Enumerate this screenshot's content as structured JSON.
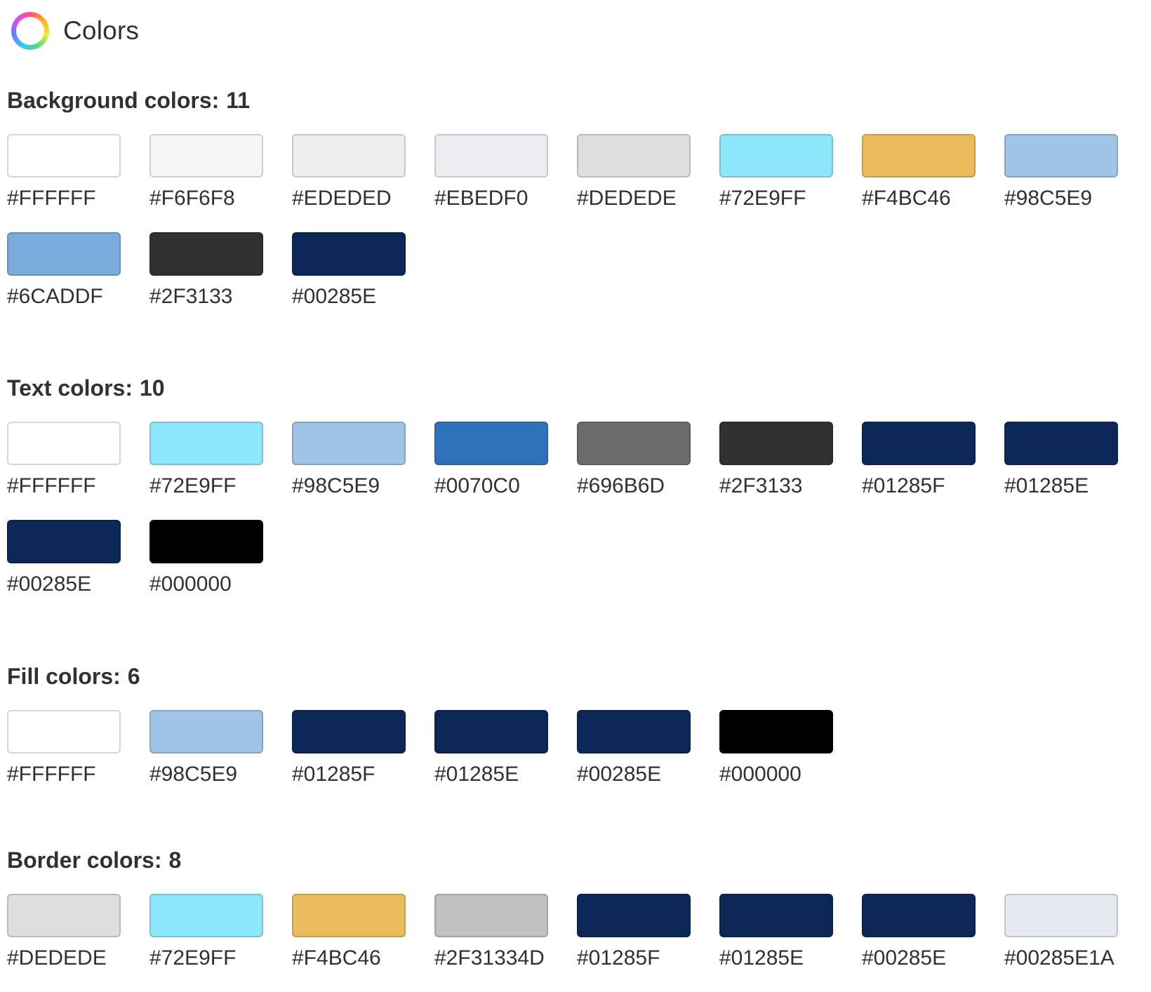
{
  "header": {
    "title": "Colors",
    "icon": "color-ring-icon"
  },
  "sections": [
    {
      "key": "background",
      "label": "Background colors:",
      "count": "11",
      "colors": [
        {
          "hex": "#FFFFFF",
          "swatch": "#FFFFFF"
        },
        {
          "hex": "#F6F6F8",
          "swatch": "#F6F6F8"
        },
        {
          "hex": "#EDEDED",
          "swatch": "#EDEDED"
        },
        {
          "hex": "#EBEDF0",
          "swatch": "#EBEDF0"
        },
        {
          "hex": "#DEDEDE",
          "swatch": "#DEDEDE"
        },
        {
          "hex": "#72E9FF",
          "swatch": "#8EE6FA"
        },
        {
          "hex": "#F4BC46",
          "swatch": "#EBBC5E"
        },
        {
          "hex": "#98C5E9",
          "swatch": "#A0C4E6"
        },
        {
          "hex": "#6CADDF",
          "swatch": "#7BADDC"
        },
        {
          "hex": "#2F3133",
          "swatch": "#2F3133"
        },
        {
          "hex": "#00285E",
          "swatch": "#0C2858"
        }
      ]
    },
    {
      "key": "text",
      "label": "Text colors:",
      "count": "10",
      "colors": [
        {
          "hex": "#FFFFFF",
          "swatch": "#FFFFFF"
        },
        {
          "hex": "#72E9FF",
          "swatch": "#8EE6FA"
        },
        {
          "hex": "#98C5E9",
          "swatch": "#A0C4E6"
        },
        {
          "hex": "#0070C0",
          "swatch": "#2E72BA"
        },
        {
          "hex": "#696B6D",
          "swatch": "#6B6C6E"
        },
        {
          "hex": "#2F3133",
          "swatch": "#2F3133"
        },
        {
          "hex": "#01285F",
          "swatch": "#0C2858"
        },
        {
          "hex": "#01285E",
          "swatch": "#0C2858"
        },
        {
          "hex": "#00285E",
          "swatch": "#0C2858"
        },
        {
          "hex": "#000000",
          "swatch": "#000000"
        }
      ]
    },
    {
      "key": "fill",
      "label": "Fill colors:",
      "count": "6",
      "colors": [
        {
          "hex": "#FFFFFF",
          "swatch": "#FFFFFF"
        },
        {
          "hex": "#98C5E9",
          "swatch": "#A0C4E6"
        },
        {
          "hex": "#01285F",
          "swatch": "#0C2858"
        },
        {
          "hex": "#01285E",
          "swatch": "#0C2858"
        },
        {
          "hex": "#00285E",
          "swatch": "#0C2858"
        },
        {
          "hex": "#000000",
          "swatch": "#000000"
        }
      ]
    },
    {
      "key": "border",
      "label": "Border colors:",
      "count": "8",
      "colors": [
        {
          "hex": "#DEDEDE",
          "swatch": "#DEDEDE"
        },
        {
          "hex": "#72E9FF",
          "swatch": "#8EE6FA"
        },
        {
          "hex": "#F4BC46",
          "swatch": "#EBBC5E"
        },
        {
          "hex": "#2F31334D",
          "swatch": "#C0C1C2"
        },
        {
          "hex": "#01285F",
          "swatch": "#0C2858"
        },
        {
          "hex": "#01285E",
          "swatch": "#0C2858"
        },
        {
          "hex": "#00285E",
          "swatch": "#0C2858"
        },
        {
          "hex": "#00285E1A",
          "swatch": "#E6E9EF"
        }
      ]
    }
  ]
}
